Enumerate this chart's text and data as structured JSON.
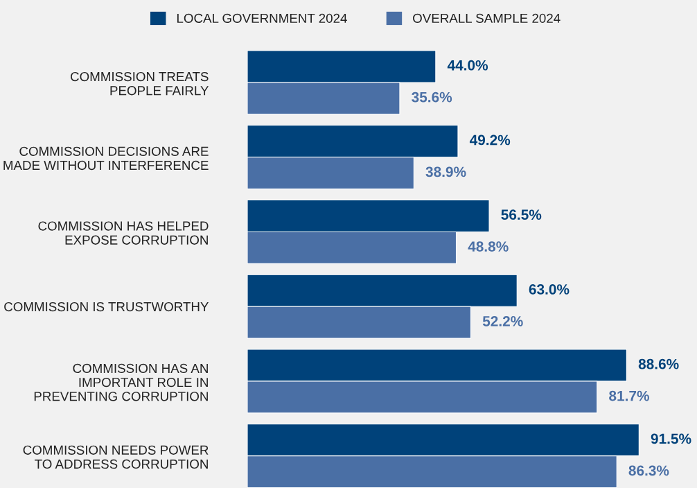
{
  "chart_data": {
    "type": "bar",
    "orientation": "horizontal",
    "legend": "top",
    "categories": [
      "COMMISSION TREATS\nPEOPLE FAIRLY",
      "COMMISSION DECISIONS ARE\nMADE WITHOUT INTERFERENCE",
      "COMMISSION HAS HELPED\nEXPOSE CORRUPTION",
      "COMMISSION IS TRUSTWORTHY",
      "COMMISSION HAS AN\nIMPORTANT ROLE IN\nPREVENTING CORRUPTION",
      "COMMISSION NEEDS POWER\nTO ADDRESS CORRUPTION"
    ],
    "series": [
      {
        "name": "LOCAL GOVERNMENT 2024",
        "color": "#00427a",
        "values": [
          44.0,
          49.2,
          56.5,
          63.0,
          88.6,
          91.5
        ],
        "value_labels": [
          "44.0%",
          "49.2%",
          "56.5%",
          "63.0%",
          "88.6%",
          "91.5%"
        ]
      },
      {
        "name": "OVERALL SAMPLE 2024",
        "color": "#4a6fa5",
        "values": [
          35.6,
          38.9,
          48.8,
          52.2,
          81.7,
          86.3
        ],
        "value_labels": [
          "35.6%",
          "38.9%",
          "48.8%",
          "52.2%",
          "81.7%",
          "86.3%"
        ]
      }
    ]
  }
}
